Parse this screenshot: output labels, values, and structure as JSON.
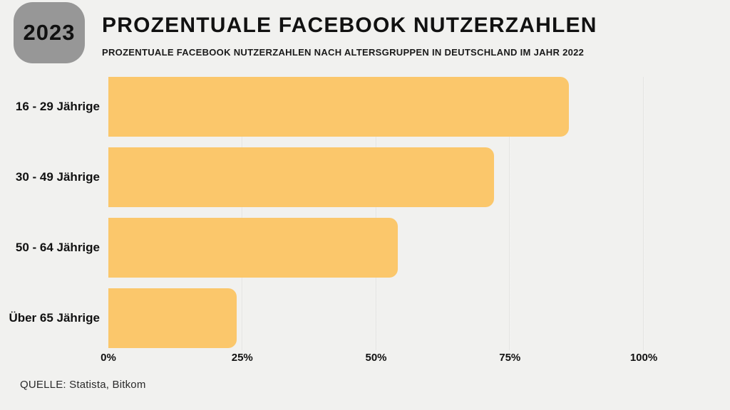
{
  "page": {
    "background": "#f1f1ef"
  },
  "header": {
    "year_badge": "2023",
    "badge_color": "#979797",
    "title": "PROZENTUALE FACEBOOK NUTZERZAHLEN",
    "subtitle": "PROZENTUALE FACEBOOK NUTZERZAHLEN NACH ALTERSGRUPPEN IN DEUTSCHLAND IM JAHR 2022"
  },
  "chart_data": {
    "type": "bar",
    "orientation": "horizontal",
    "title": "PROZENTUALE FACEBOOK NUTZERZAHLEN",
    "subtitle": "PROZENTUALE FACEBOOK NUTZERZAHLEN NACH ALTERSGRUPPEN IN DEUTSCHLAND IM JAHR 2022",
    "categories": [
      "16 - 29 Jährige",
      "30 - 49 Jährige",
      "50 - 64 Jährige",
      "Über 65 Jährige"
    ],
    "values": [
      86,
      72,
      54,
      24
    ],
    "unit": "%",
    "xlim": [
      0,
      100
    ],
    "x_tick_values": [
      0,
      25,
      50,
      75,
      100
    ],
    "x_ticks": [
      "0%",
      "25%",
      "50%",
      "75%",
      "100%"
    ],
    "grid": true,
    "bar_color": "#fbc76b",
    "legend": false
  },
  "footer": {
    "source": "QUELLE: Statista, Bitkom"
  }
}
